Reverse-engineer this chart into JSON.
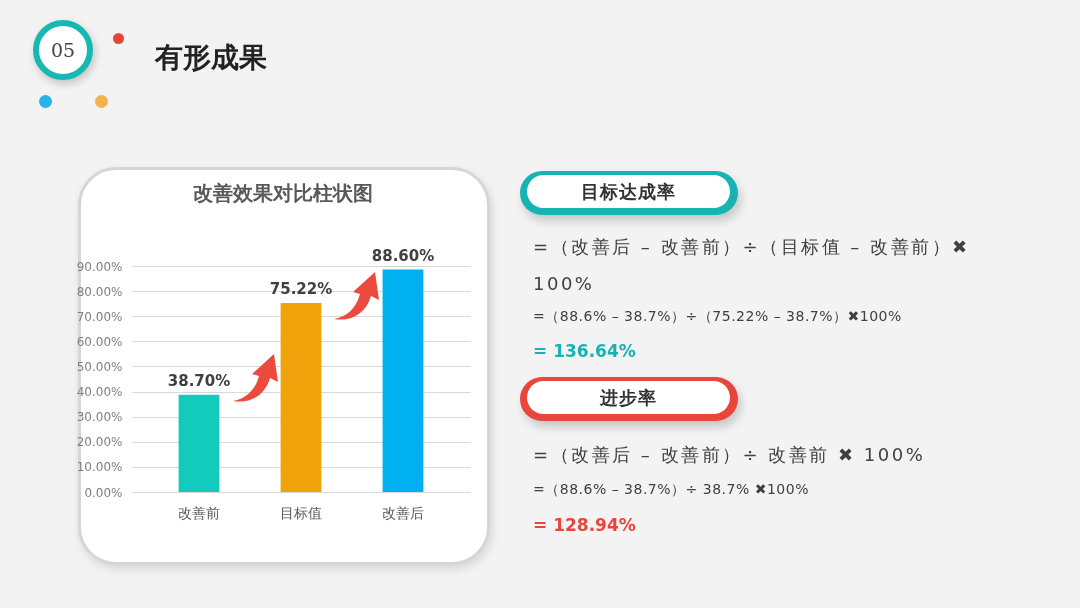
{
  "chart_data": {
    "type": "bar",
    "title": "改善效果对比柱状图",
    "categories": [
      "改善前",
      "目标值",
      "改善后"
    ],
    "values": [
      38.7,
      75.22,
      88.6
    ],
    "value_labels": [
      "38.70%",
      "75.22%",
      "88.60%"
    ],
    "colors": [
      "#13cbbd",
      "#f0a30a",
      "#00b0f0"
    ],
    "ylim": [
      0,
      90
    ],
    "yticks": [
      {
        "value": 0,
        "label": "0.00%"
      },
      {
        "value": 10,
        "label": "10.00%"
      },
      {
        "value": 20,
        "label": "20.00%"
      },
      {
        "value": 30,
        "label": "30.00%"
      },
      {
        "value": 40,
        "label": "40.00%"
      },
      {
        "value": 50,
        "label": "50.00%"
      },
      {
        "value": 60,
        "label": "60.00%"
      },
      {
        "value": 70,
        "label": "70.00%"
      },
      {
        "value": 80,
        "label": "80.00%"
      },
      {
        "value": 90,
        "label": "90.00%"
      }
    ],
    "grid": "y",
    "annotations": [
      "05",
      "有形成果",
      "目标达成率",
      "=（改善后 – 改善前）÷（目标值 – 改善前）✖ 100%",
      "=（88.6% – 38.7%）÷（75.22% – 38.7%）✖100%",
      "= 136.64%",
      "进步率",
      "=（改善后 – 改善前）÷ 改善前 ✖ 100%",
      "=（88.6% – 38.7%）÷ 38.7% ✖100%",
      "= 128.94%"
    ]
  }
}
